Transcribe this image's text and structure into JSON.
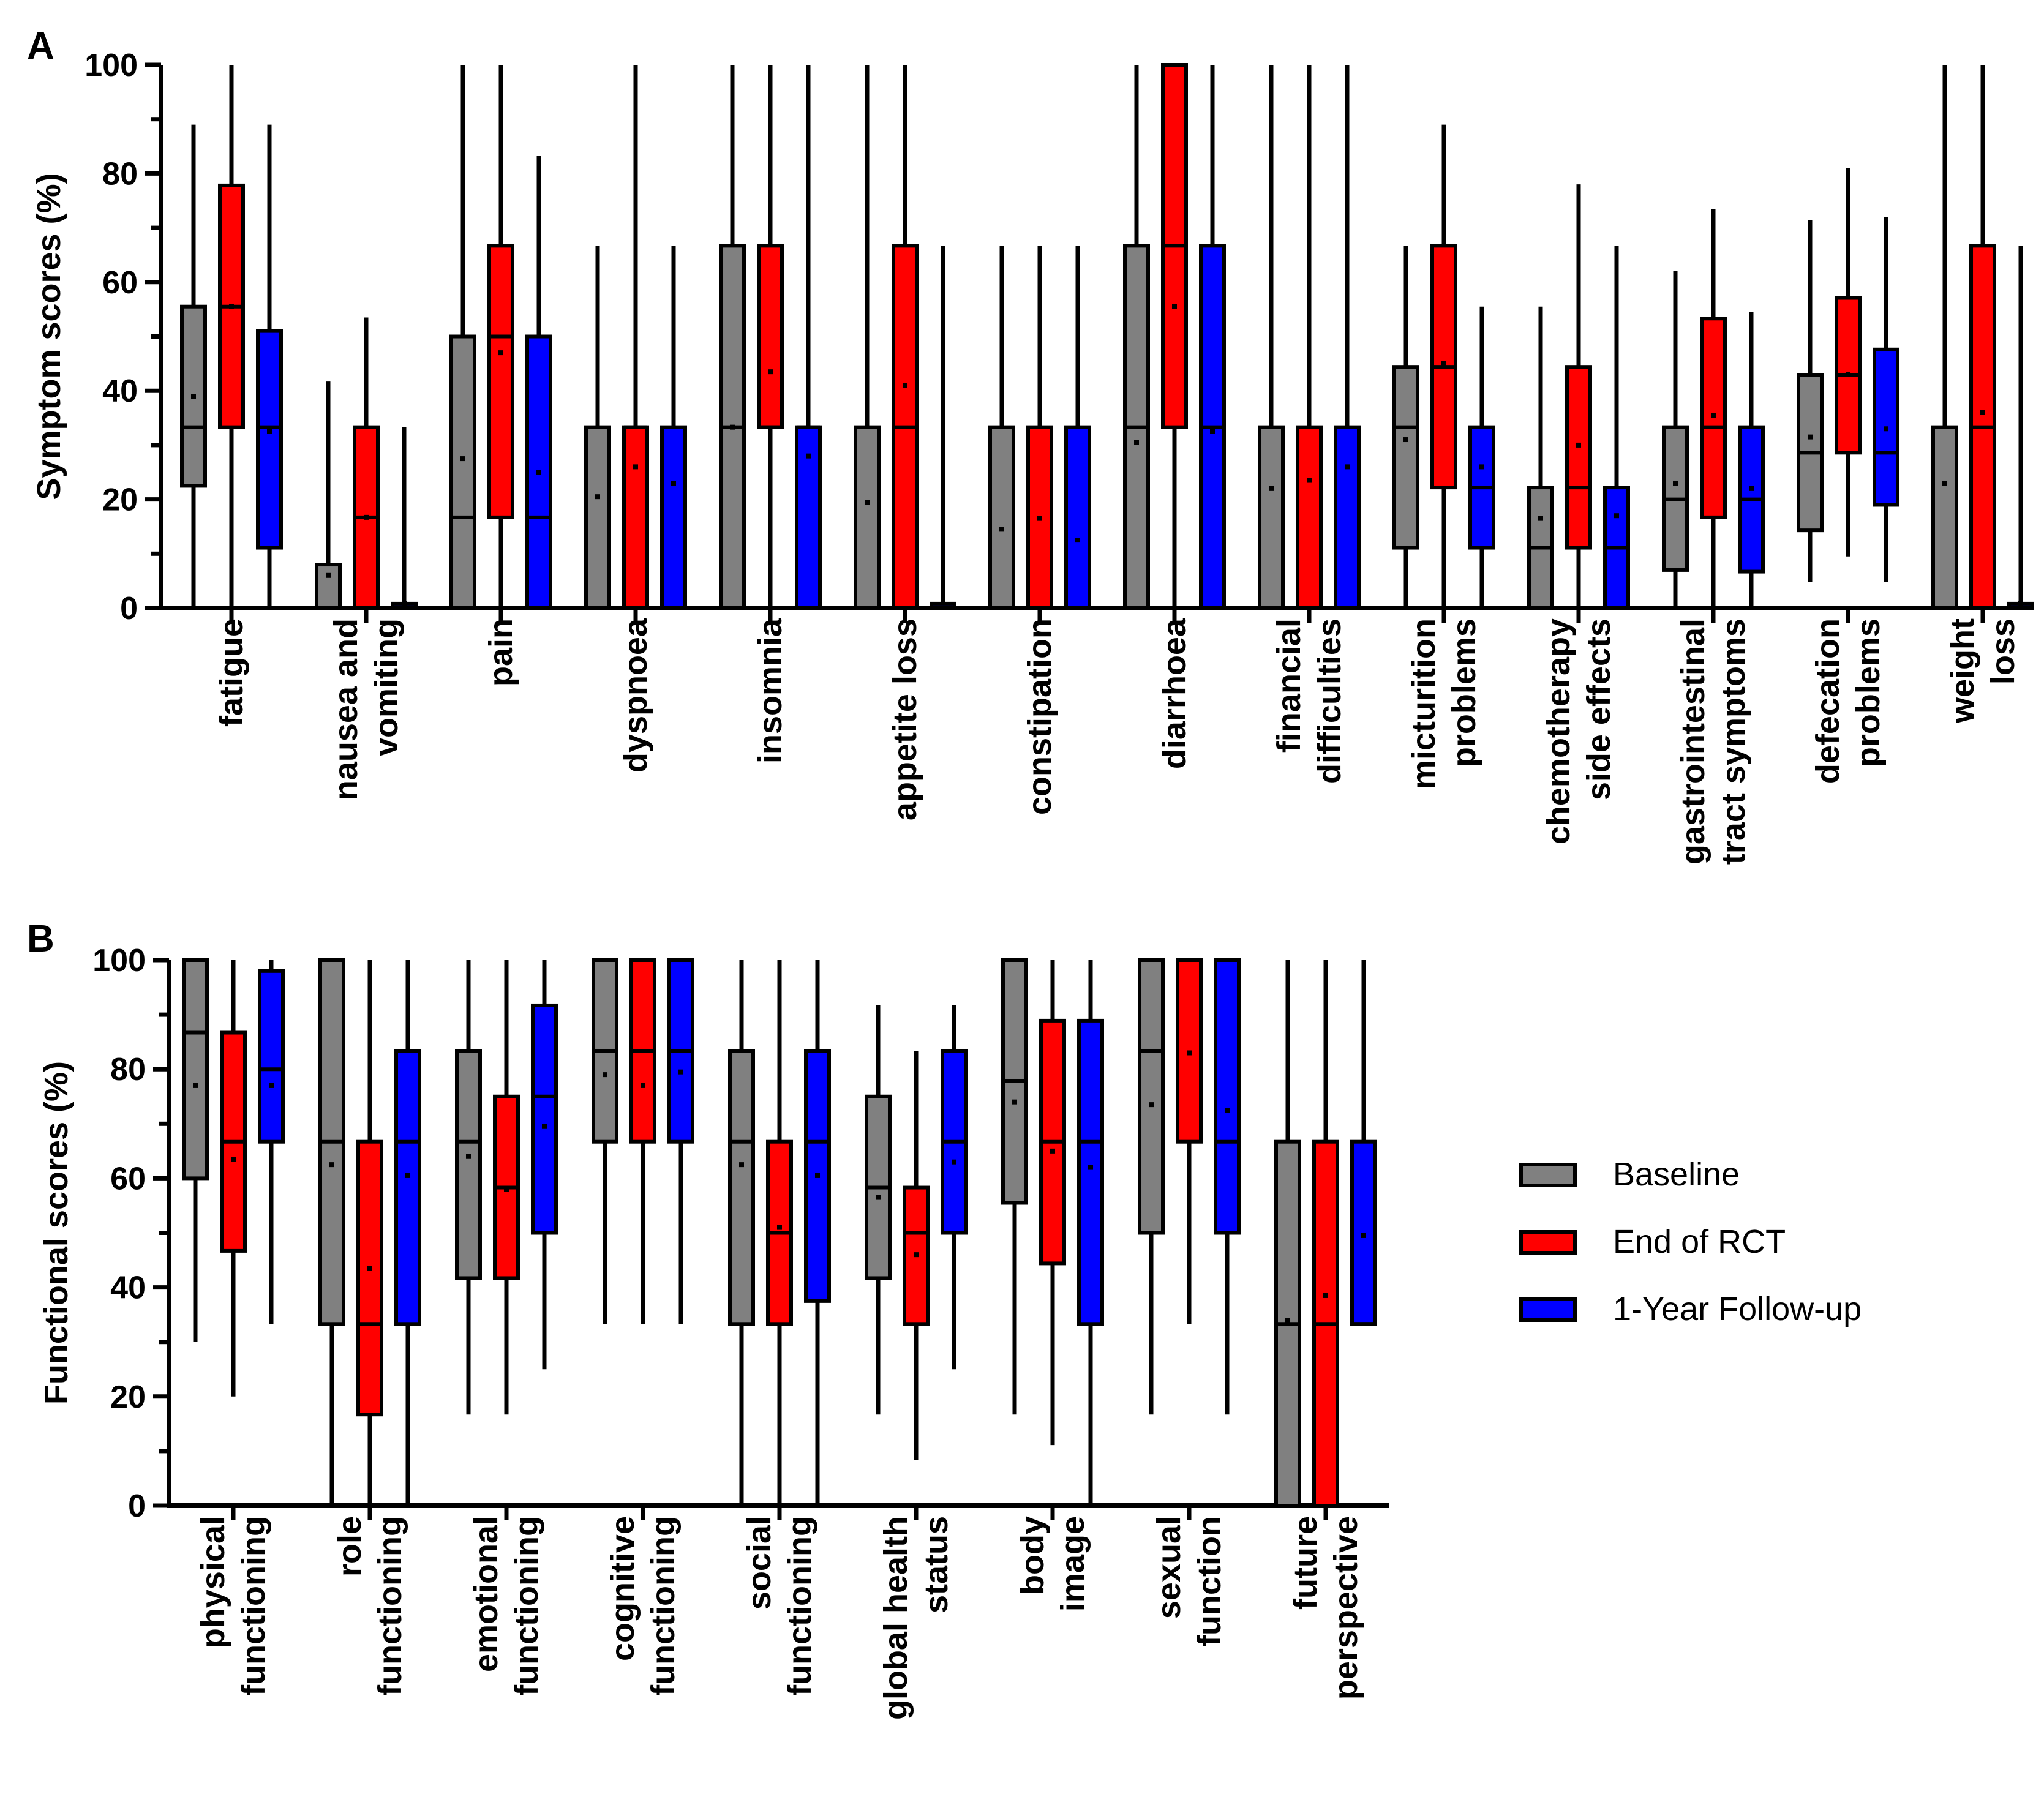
{
  "colors": {
    "Baseline": "#808080",
    "End of RCT": "#ff0000",
    "1-Year Follow-up": "#0000ff",
    "axis": "#000000"
  },
  "legend": {
    "placement": "right-middle",
    "items": [
      {
        "label": "Baseline",
        "color": "#808080"
      },
      {
        "label": "End of RCT",
        "color": "#ff0000"
      },
      {
        "label": "1-Year Follow-up",
        "color": "#0000ff"
      }
    ]
  },
  "chart_data": [
    {
      "type": "box",
      "panel": "A",
      "ylabel": "Symptom scores (%)",
      "ylim": [
        0,
        100
      ],
      "yticks": [
        0,
        20,
        40,
        60,
        80,
        100
      ],
      "series_names": [
        "Baseline",
        "End of RCT",
        "1-Year Follow-up"
      ],
      "categories": [
        {
          "lines": [
            "fatigue"
          ],
          "boxes": [
            {
              "min": 0,
              "q1": 22.5,
              "median": 33.3,
              "q3": 55.5,
              "max": 89,
              "mean": 39
            },
            {
              "min": 0,
              "q1": 33.3,
              "median": 55.5,
              "q3": 77.8,
              "max": 100,
              "mean": 55.5
            },
            {
              "min": 0,
              "q1": 11.1,
              "median": 33.3,
              "q3": 51,
              "max": 89,
              "mean": 32.5
            }
          ]
        },
        {
          "lines": [
            "nausea and",
            "vomiting"
          ],
          "boxes": [
            {
              "min": 0,
              "q1": 0,
              "median": 0,
              "q3": 8,
              "max": 41.7,
              "mean": 6
            },
            {
              "min": 0,
              "q1": 0,
              "median": 16.7,
              "q3": 33.3,
              "max": 53.5,
              "mean": 16.7
            },
            {
              "min": 0,
              "q1": 0,
              "median": 0,
              "q3": 0.8,
              "max": 33.3,
              "mean": 0.8
            }
          ]
        },
        {
          "lines": [
            "pain"
          ],
          "boxes": [
            {
              "min": 0,
              "q1": 0,
              "median": 16.7,
              "q3": 50,
              "max": 100,
              "mean": 27.5
            },
            {
              "min": 0,
              "q1": 16.7,
              "median": 50,
              "q3": 66.7,
              "max": 100,
              "mean": 47
            },
            {
              "min": 0,
              "q1": 0,
              "median": 16.7,
              "q3": 50,
              "max": 83.3,
              "mean": 25
            }
          ]
        },
        {
          "lines": [
            "dyspnoea"
          ],
          "boxes": [
            {
              "min": 0,
              "q1": 0,
              "median": 0,
              "q3": 33.3,
              "max": 66.7,
              "mean": 20.5
            },
            {
              "min": 0,
              "q1": 0,
              "median": 33.3,
              "q3": 33.3,
              "max": 100,
              "mean": 26
            },
            {
              "min": 0,
              "q1": 0,
              "median": 0,
              "q3": 33.3,
              "max": 66.7,
              "mean": 23
            }
          ]
        },
        {
          "lines": [
            "insomnia"
          ],
          "boxes": [
            {
              "min": 0,
              "q1": 0,
              "median": 33.3,
              "q3": 66.7,
              "max": 100,
              "mean": 33.3
            },
            {
              "min": 0,
              "q1": 33.3,
              "median": 33.3,
              "q3": 66.7,
              "max": 100,
              "mean": 43.5
            },
            {
              "min": 0,
              "q1": 0,
              "median": 33.3,
              "q3": 33.3,
              "max": 100,
              "mean": 28
            }
          ]
        },
        {
          "lines": [
            "appetite loss"
          ],
          "boxes": [
            {
              "min": 0,
              "q1": 0,
              "median": 0,
              "q3": 33.3,
              "max": 100,
              "mean": 19.5
            },
            {
              "min": 0,
              "q1": 0,
              "median": 33.3,
              "q3": 66.7,
              "max": 100,
              "mean": 41
            },
            {
              "min": 0,
              "q1": 0,
              "median": 0,
              "q3": 0.8,
              "max": 66.7,
              "mean": 10
            }
          ]
        },
        {
          "lines": [
            "constipation"
          ],
          "boxes": [
            {
              "min": 0,
              "q1": 0,
              "median": 0,
              "q3": 33.3,
              "max": 66.7,
              "mean": 14.5
            },
            {
              "min": 0,
              "q1": 0,
              "median": 0,
              "q3": 33.3,
              "max": 66.7,
              "mean": 16.5
            },
            {
              "min": 0,
              "q1": 0,
              "median": 0,
              "q3": 33.3,
              "max": 66.7,
              "mean": 12.5
            }
          ]
        },
        {
          "lines": [
            "diarrhoea"
          ],
          "boxes": [
            {
              "min": 0,
              "q1": 0,
              "median": 33.3,
              "q3": 66.7,
              "max": 100,
              "mean": 30.5
            },
            {
              "min": 0,
              "q1": 33.3,
              "median": 66.7,
              "q3": 100,
              "max": 100,
              "mean": 55.5
            },
            {
              "min": 0,
              "q1": 0,
              "median": 33.3,
              "q3": 66.7,
              "max": 100,
              "mean": 32.5
            }
          ]
        },
        {
          "lines": [
            "financial",
            "difficulties"
          ],
          "boxes": [
            {
              "min": 0,
              "q1": 0,
              "median": 0,
              "q3": 33.3,
              "max": 100,
              "mean": 22
            },
            {
              "min": 0,
              "q1": 0,
              "median": 0,
              "q3": 33.3,
              "max": 100,
              "mean": 23.5
            },
            {
              "min": 0,
              "q1": 0,
              "median": 0,
              "q3": 33.3,
              "max": 100,
              "mean": 26
            }
          ]
        },
        {
          "lines": [
            "micturition",
            "problems"
          ],
          "boxes": [
            {
              "min": 0,
              "q1": 11.1,
              "median": 33.3,
              "q3": 44.4,
              "max": 66.7,
              "mean": 31
            },
            {
              "min": 0,
              "q1": 22.2,
              "median": 44.4,
              "q3": 66.7,
              "max": 89,
              "mean": 45
            },
            {
              "min": 0,
              "q1": 11.1,
              "median": 22.2,
              "q3": 33.3,
              "max": 55.5,
              "mean": 26
            }
          ]
        },
        {
          "lines": [
            "chemotherapy",
            "side effects"
          ],
          "boxes": [
            {
              "min": 0,
              "q1": 0,
              "median": 11.1,
              "q3": 22.2,
              "max": 55.5,
              "mean": 16.5
            },
            {
              "min": 0,
              "q1": 11.1,
              "median": 22.2,
              "q3": 44.4,
              "max": 78,
              "mean": 30
            },
            {
              "min": 0,
              "q1": 0,
              "median": 11.1,
              "q3": 22.2,
              "max": 66.7,
              "mean": 17
            }
          ]
        },
        {
          "lines": [
            "gastrointestinal",
            "tract symptoms"
          ],
          "boxes": [
            {
              "min": 0,
              "q1": 7,
              "median": 20,
              "q3": 33.3,
              "max": 62,
              "mean": 23
            },
            {
              "min": 0,
              "q1": 16.7,
              "median": 33.3,
              "q3": 53.3,
              "max": 73.5,
              "mean": 35.5
            },
            {
              "min": 0,
              "q1": 6.7,
              "median": 20,
              "q3": 33.3,
              "max": 54.5,
              "mean": 22
            }
          ]
        },
        {
          "lines": [
            "defecation",
            "problems"
          ],
          "boxes": [
            {
              "min": 4.8,
              "q1": 14.3,
              "median": 28.6,
              "q3": 42.9,
              "max": 71.4,
              "mean": 31.5
            },
            {
              "min": 9.5,
              "q1": 28.6,
              "median": 42.9,
              "q3": 57.1,
              "max": 81,
              "mean": 43
            },
            {
              "min": 4.8,
              "q1": 19,
              "median": 28.6,
              "q3": 47.6,
              "max": 72,
              "mean": 33
            }
          ]
        },
        {
          "lines": [
            "weight",
            "loss"
          ],
          "boxes": [
            {
              "min": 0,
              "q1": 0,
              "median": 0,
              "q3": 33.3,
              "max": 100,
              "mean": 23
            },
            {
              "min": 0,
              "q1": 0,
              "median": 33.3,
              "q3": 66.7,
              "max": 100,
              "mean": 36
            },
            {
              "min": 0,
              "q1": 0,
              "median": 0,
              "q3": 0.8,
              "max": 66.7,
              "mean": 0.8
            }
          ]
        }
      ]
    },
    {
      "type": "box",
      "panel": "B",
      "ylabel": "Functional scores (%)",
      "ylim": [
        0,
        100
      ],
      "yticks": [
        0,
        20,
        40,
        60,
        80,
        100
      ],
      "series_names": [
        "Baseline",
        "End of RCT",
        "1-Year Follow-up"
      ],
      "categories": [
        {
          "lines": [
            "physical",
            "functioning"
          ],
          "boxes": [
            {
              "min": 30,
              "q1": 60,
              "median": 86.7,
              "q3": 100,
              "max": 100,
              "mean": 77
            },
            {
              "min": 20,
              "q1": 46.7,
              "median": 66.7,
              "q3": 86.7,
              "max": 100,
              "mean": 63.5
            },
            {
              "min": 33.3,
              "q1": 66.7,
              "median": 80,
              "q3": 98,
              "max": 100,
              "mean": 77
            }
          ]
        },
        {
          "lines": [
            "role",
            "functioning"
          ],
          "boxes": [
            {
              "min": 0,
              "q1": 33.3,
              "median": 66.7,
              "q3": 100,
              "max": 100,
              "mean": 62.5
            },
            {
              "min": 0,
              "q1": 16.7,
              "median": 33.3,
              "q3": 66.7,
              "max": 100,
              "mean": 43.5
            },
            {
              "min": 0,
              "q1": 33.3,
              "median": 66.7,
              "q3": 83.3,
              "max": 100,
              "mean": 60.5
            }
          ]
        },
        {
          "lines": [
            "emotional",
            "functioning"
          ],
          "boxes": [
            {
              "min": 16.7,
              "q1": 41.7,
              "median": 66.7,
              "q3": 83.3,
              "max": 100,
              "mean": 64
            },
            {
              "min": 16.7,
              "q1": 41.7,
              "median": 58.3,
              "q3": 75,
              "max": 100,
              "mean": 58
            },
            {
              "min": 25,
              "q1": 50,
              "median": 75,
              "q3": 91.7,
              "max": 100,
              "mean": 69.5
            }
          ]
        },
        {
          "lines": [
            "cognitive",
            "functioning"
          ],
          "boxes": [
            {
              "min": 33.3,
              "q1": 66.7,
              "median": 83.3,
              "q3": 100,
              "max": 100,
              "mean": 79
            },
            {
              "min": 33.3,
              "q1": 66.7,
              "median": 83.3,
              "q3": 100,
              "max": 100,
              "mean": 77
            },
            {
              "min": 33.3,
              "q1": 66.7,
              "median": 83.3,
              "q3": 100,
              "max": 100,
              "mean": 79.5
            }
          ]
        },
        {
          "lines": [
            "social",
            "functioning"
          ],
          "boxes": [
            {
              "min": 0,
              "q1": 33.3,
              "median": 66.7,
              "q3": 83.3,
              "max": 100,
              "mean": 62.5
            },
            {
              "min": 0,
              "q1": 33.3,
              "median": 50,
              "q3": 66.7,
              "max": 100,
              "mean": 51
            },
            {
              "min": 0,
              "q1": 37.5,
              "median": 66.7,
              "q3": 83.3,
              "max": 100,
              "mean": 60.5
            }
          ]
        },
        {
          "lines": [
            "global health",
            "status"
          ],
          "boxes": [
            {
              "min": 16.7,
              "q1": 41.7,
              "median": 58.3,
              "q3": 75,
              "max": 91.7,
              "mean": 56.5
            },
            {
              "min": 8.3,
              "q1": 33.3,
              "median": 50,
              "q3": 58.3,
              "max": 83.3,
              "mean": 46
            },
            {
              "min": 25,
              "q1": 50,
              "median": 66.7,
              "q3": 83.3,
              "max": 91.7,
              "mean": 63
            }
          ]
        },
        {
          "lines": [
            "body",
            "image"
          ],
          "boxes": [
            {
              "min": 16.7,
              "q1": 55.5,
              "median": 77.8,
              "q3": 100,
              "max": 100,
              "mean": 74
            },
            {
              "min": 11.1,
              "q1": 44.4,
              "median": 66.7,
              "q3": 88.9,
              "max": 100,
              "mean": 65
            },
            {
              "min": 0,
              "q1": 33.3,
              "median": 66.7,
              "q3": 88.9,
              "max": 100,
              "mean": 62
            }
          ]
        },
        {
          "lines": [
            "sexual",
            "function"
          ],
          "boxes": [
            {
              "min": 16.7,
              "q1": 50,
              "median": 83.3,
              "q3": 100,
              "max": 100,
              "mean": 73.5
            },
            {
              "min": 33.3,
              "q1": 66.7,
              "median": 100,
              "q3": 100,
              "max": 100,
              "mean": 83
            },
            {
              "min": 16.7,
              "q1": 50,
              "median": 66.7,
              "q3": 100,
              "max": 100,
              "mean": 72.5
            }
          ]
        },
        {
          "lines": [
            "future",
            "perspective"
          ],
          "boxes": [
            {
              "min": 0,
              "q1": 0,
              "median": 33.3,
              "q3": 66.7,
              "max": 100,
              "mean": 34
            },
            {
              "min": 0,
              "q1": 0,
              "median": 33.3,
              "q3": 66.7,
              "max": 100,
              "mean": 38.5
            },
            {
              "min": 33.3,
              "q1": 33.3,
              "median": 33.3,
              "q3": 66.7,
              "max": 100,
              "mean": 49.5
            }
          ]
        }
      ]
    }
  ]
}
